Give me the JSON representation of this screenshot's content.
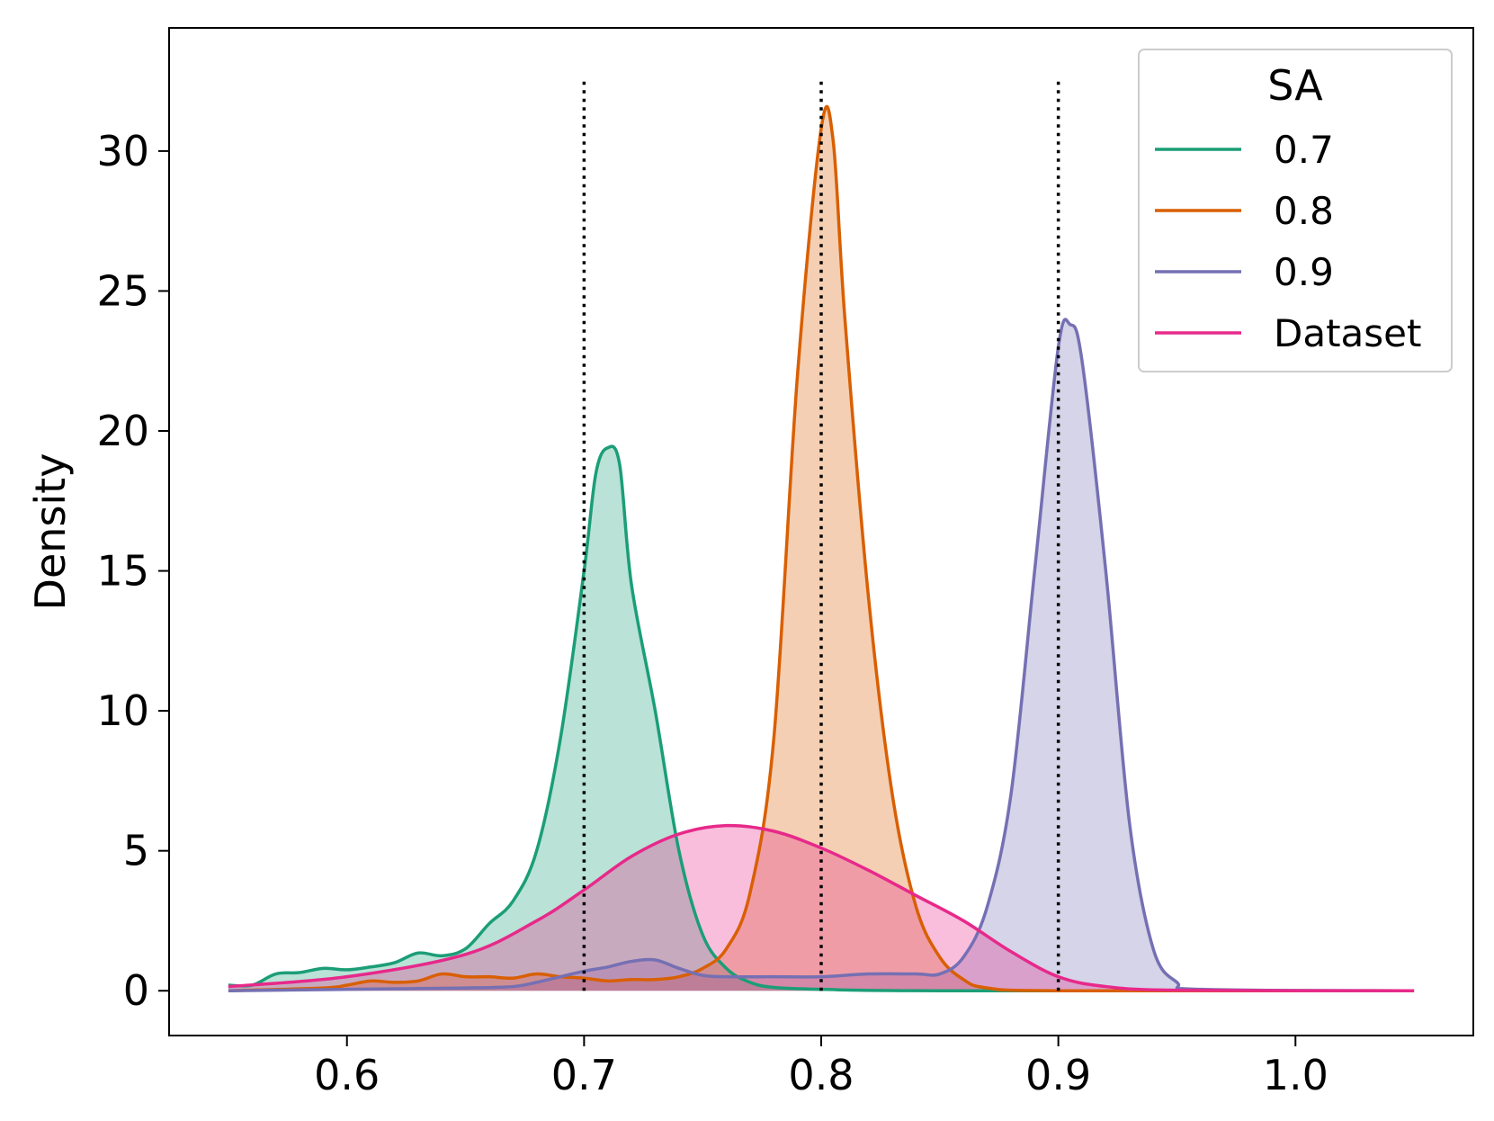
{
  "chart_data": {
    "type": "area",
    "title": "",
    "xlabel": "",
    "ylabel": "Density",
    "xlim": [
      0.525,
      1.075
    ],
    "ylim": [
      -1.6,
      34.4
    ],
    "xticks": [
      0.6,
      0.7,
      0.8,
      0.9,
      1.0
    ],
    "xtick_labels": [
      "0.6",
      "0.7",
      "0.8",
      "0.9",
      "1.0"
    ],
    "yticks": [
      0,
      5,
      10,
      15,
      20,
      25,
      30
    ],
    "ytick_labels": [
      "0",
      "5",
      "10",
      "15",
      "20",
      "25",
      "30"
    ],
    "grid": false,
    "legend": {
      "title": "SA",
      "position": "top-right"
    },
    "reference_lines": {
      "style": "dotted",
      "color": "#000000",
      "x": [
        0.7,
        0.8,
        0.9
      ],
      "y_top": 32.6
    },
    "series": [
      {
        "name": "0.7",
        "color": "#1b9e77",
        "fill_opacity": 0.3,
        "points": [
          [
            0.55,
            0.2
          ],
          [
            0.56,
            0.2
          ],
          [
            0.57,
            0.6
          ],
          [
            0.58,
            0.65
          ],
          [
            0.59,
            0.8
          ],
          [
            0.6,
            0.75
          ],
          [
            0.61,
            0.85
          ],
          [
            0.62,
            1.0
          ],
          [
            0.63,
            1.35
          ],
          [
            0.64,
            1.25
          ],
          [
            0.65,
            1.5
          ],
          [
            0.66,
            2.4
          ],
          [
            0.67,
            3.2
          ],
          [
            0.68,
            5.0
          ],
          [
            0.69,
            9.0
          ],
          [
            0.7,
            15.0
          ],
          [
            0.705,
            18.5
          ],
          [
            0.71,
            19.4
          ],
          [
            0.715,
            18.8
          ],
          [
            0.72,
            14.5
          ],
          [
            0.73,
            10.0
          ],
          [
            0.74,
            5.0
          ],
          [
            0.75,
            2.0
          ],
          [
            0.76,
            0.8
          ],
          [
            0.77,
            0.3
          ],
          [
            0.78,
            0.12
          ],
          [
            0.8,
            0.05
          ],
          [
            0.85,
            0.0
          ],
          [
            1.05,
            0.0
          ]
        ]
      },
      {
        "name": "0.8",
        "color": "#d95f02",
        "fill_opacity": 0.3,
        "points": [
          [
            0.55,
            0.0
          ],
          [
            0.59,
            0.1
          ],
          [
            0.6,
            0.2
          ],
          [
            0.61,
            0.35
          ],
          [
            0.62,
            0.3
          ],
          [
            0.63,
            0.35
          ],
          [
            0.64,
            0.6
          ],
          [
            0.65,
            0.5
          ],
          [
            0.66,
            0.5
          ],
          [
            0.67,
            0.45
          ],
          [
            0.68,
            0.6
          ],
          [
            0.69,
            0.5
          ],
          [
            0.7,
            0.45
          ],
          [
            0.71,
            0.35
          ],
          [
            0.72,
            0.4
          ],
          [
            0.73,
            0.4
          ],
          [
            0.74,
            0.5
          ],
          [
            0.75,
            0.8
          ],
          [
            0.76,
            1.5
          ],
          [
            0.77,
            3.5
          ],
          [
            0.78,
            9.0
          ],
          [
            0.79,
            22.0
          ],
          [
            0.8,
            30.8
          ],
          [
            0.805,
            30.4
          ],
          [
            0.81,
            24.0
          ],
          [
            0.82,
            14.0
          ],
          [
            0.83,
            7.0
          ],
          [
            0.84,
            3.0
          ],
          [
            0.85,
            1.2
          ],
          [
            0.86,
            0.4
          ],
          [
            0.87,
            0.1
          ],
          [
            0.9,
            0.0
          ],
          [
            1.05,
            0.0
          ]
        ]
      },
      {
        "name": "0.9",
        "color": "#7570b3",
        "fill_opacity": 0.3,
        "points": [
          [
            0.55,
            0.0
          ],
          [
            0.6,
            0.05
          ],
          [
            0.65,
            0.1
          ],
          [
            0.67,
            0.15
          ],
          [
            0.68,
            0.3
          ],
          [
            0.69,
            0.5
          ],
          [
            0.7,
            0.7
          ],
          [
            0.71,
            0.85
          ],
          [
            0.72,
            1.05
          ],
          [
            0.73,
            1.1
          ],
          [
            0.74,
            0.8
          ],
          [
            0.75,
            0.55
          ],
          [
            0.76,
            0.5
          ],
          [
            0.78,
            0.5
          ],
          [
            0.8,
            0.5
          ],
          [
            0.82,
            0.6
          ],
          [
            0.84,
            0.6
          ],
          [
            0.85,
            0.6
          ],
          [
            0.86,
            1.2
          ],
          [
            0.87,
            3.0
          ],
          [
            0.88,
            7.0
          ],
          [
            0.89,
            15.0
          ],
          [
            0.9,
            23.0
          ],
          [
            0.905,
            23.8
          ],
          [
            0.91,
            22.5
          ],
          [
            0.92,
            15.0
          ],
          [
            0.93,
            6.0
          ],
          [
            0.94,
            1.5
          ],
          [
            0.95,
            0.3
          ],
          [
            0.96,
            0.05
          ],
          [
            1.05,
            0.0
          ]
        ]
      },
      {
        "name": "Dataset",
        "color": "#e7298a",
        "fill_opacity": 0.3,
        "points": [
          [
            0.55,
            0.15
          ],
          [
            0.6,
            0.5
          ],
          [
            0.65,
            1.3
          ],
          [
            0.68,
            2.5
          ],
          [
            0.7,
            3.6
          ],
          [
            0.72,
            4.8
          ],
          [
            0.74,
            5.6
          ],
          [
            0.76,
            5.9
          ],
          [
            0.78,
            5.7
          ],
          [
            0.8,
            5.1
          ],
          [
            0.82,
            4.3
          ],
          [
            0.84,
            3.4
          ],
          [
            0.86,
            2.5
          ],
          [
            0.88,
            1.4
          ],
          [
            0.9,
            0.5
          ],
          [
            0.92,
            0.15
          ],
          [
            0.95,
            0.02
          ],
          [
            1.05,
            0.0
          ]
        ]
      }
    ]
  }
}
